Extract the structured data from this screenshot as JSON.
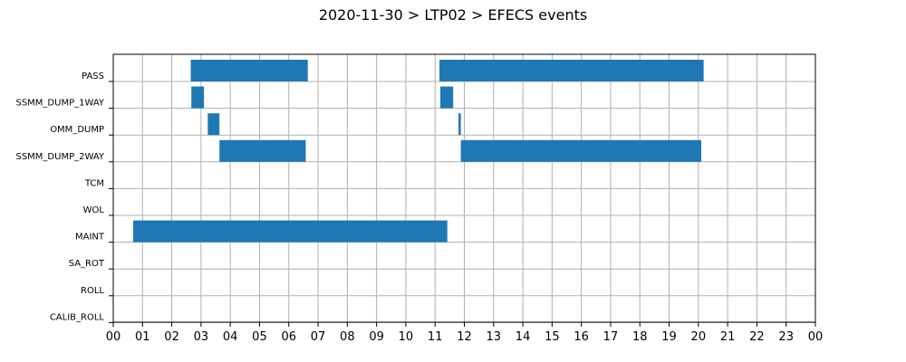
{
  "chart_data": {
    "type": "bar",
    "orientation": "horizontal-timeline",
    "title": "2020-11-30 > LTP02 > EFECS events",
    "xlabel": "",
    "ylabel": "",
    "x_unit": "hour",
    "xlim": [
      0,
      24
    ],
    "x_ticks": [
      "00",
      "01",
      "02",
      "03",
      "04",
      "05",
      "06",
      "07",
      "08",
      "09",
      "10",
      "11",
      "12",
      "13",
      "14",
      "15",
      "16",
      "17",
      "18",
      "19",
      "20",
      "21",
      "22",
      "23",
      "00"
    ],
    "categories": [
      "PASS",
      "SSMM_DUMP_1WAY",
      "OMM_DUMP",
      "SSMM_DUMP_2WAY",
      "TCM",
      "WOL",
      "MAINT",
      "SA_ROT",
      "ROLL",
      "CALIB_ROLL"
    ],
    "grid": true,
    "bar_color": "#1f77b4",
    "events": [
      {
        "category": "PASS",
        "start": 2.65,
        "end": 6.65
      },
      {
        "category": "PASS",
        "start": 11.15,
        "end": 20.18
      },
      {
        "category": "SSMM_DUMP_1WAY",
        "start": 2.67,
        "end": 3.1
      },
      {
        "category": "SSMM_DUMP_1WAY",
        "start": 11.18,
        "end": 11.62
      },
      {
        "category": "OMM_DUMP",
        "start": 3.23,
        "end": 3.63
      },
      {
        "category": "OMM_DUMP",
        "start": 11.8,
        "end": 11.88
      },
      {
        "category": "SSMM_DUMP_2WAY",
        "start": 3.63,
        "end": 6.58
      },
      {
        "category": "SSMM_DUMP_2WAY",
        "start": 11.88,
        "end": 20.1
      },
      {
        "category": "MAINT",
        "start": 0.68,
        "end": 11.42
      }
    ]
  }
}
